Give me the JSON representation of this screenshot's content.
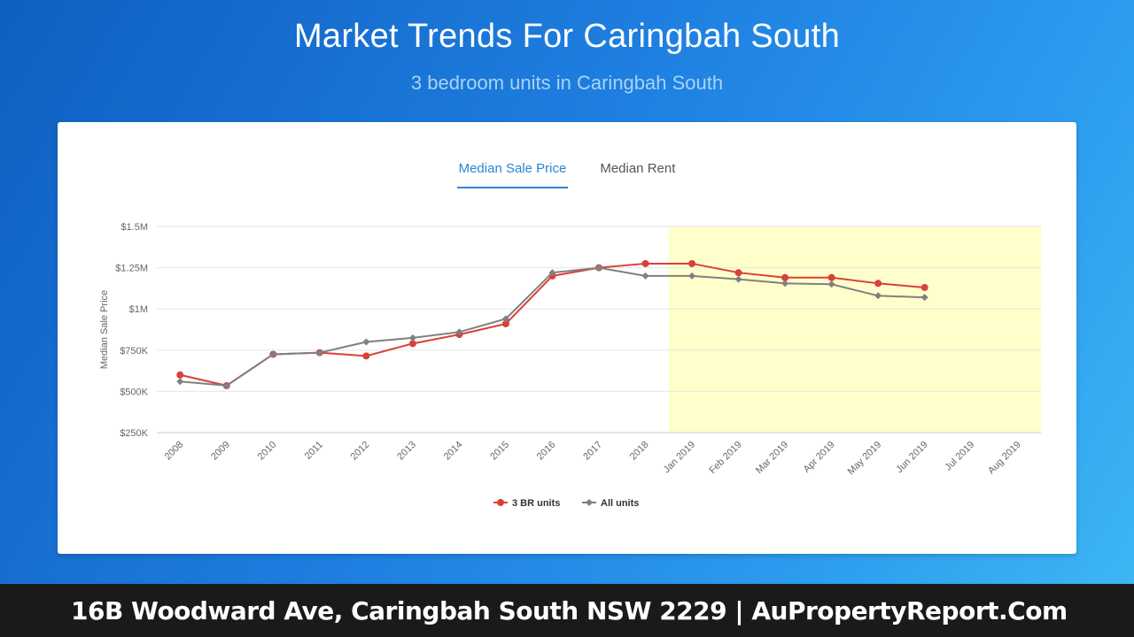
{
  "header": {
    "title": "Market Trends For Caringbah South",
    "subtitle": "3 bedroom units in Caringbah South"
  },
  "tabs": [
    {
      "label": "Median Sale Price",
      "active": true
    },
    {
      "label": "Median Rent",
      "active": false
    }
  ],
  "chart_data": {
    "type": "line",
    "ylabel": "Median Sale Price",
    "ylim": [
      250000,
      1500000
    ],
    "yticks": [
      {
        "value": 1500000,
        "label": "$1.5M"
      },
      {
        "value": 1250000,
        "label": "$1.25M"
      },
      {
        "value": 1000000,
        "label": "$1M"
      },
      {
        "value": 750000,
        "label": "$750K"
      },
      {
        "value": 500000,
        "label": "$500K"
      },
      {
        "value": 250000,
        "label": "$250K"
      }
    ],
    "categories": [
      "2008",
      "2009",
      "2010",
      "2011",
      "2012",
      "2013",
      "2014",
      "2015",
      "2016",
      "2017",
      "2018",
      "Jan 2019",
      "Feb 2019",
      "Mar 2019",
      "Apr 2019",
      "May 2019",
      "Jun 2019",
      "Jul 2019",
      "Aug 2019"
    ],
    "highlight_from": "Jan 2019",
    "highlight_color": "#ffffcc",
    "series": [
      {
        "name": "3 BR units",
        "color": "#d9403a",
        "marker": "circle",
        "values": [
          600000,
          535000,
          725000,
          735000,
          715000,
          790000,
          845000,
          910000,
          1200000,
          1250000,
          1275000,
          1275000,
          1220000,
          1190000,
          1190000,
          1155000,
          1130000,
          null,
          null
        ]
      },
      {
        "name": "All units",
        "color": "#808080",
        "marker": "diamond",
        "values": [
          560000,
          535000,
          725000,
          735000,
          800000,
          825000,
          860000,
          940000,
          1220000,
          1250000,
          1200000,
          1200000,
          1180000,
          1155000,
          1150000,
          1080000,
          1070000,
          null,
          null
        ]
      }
    ],
    "legend_position": "bottom-center",
    "grid": true
  },
  "footer": {
    "text": "16B Woodward Ave, Caringbah South NSW 2229 | AuPropertyReport.Com"
  }
}
